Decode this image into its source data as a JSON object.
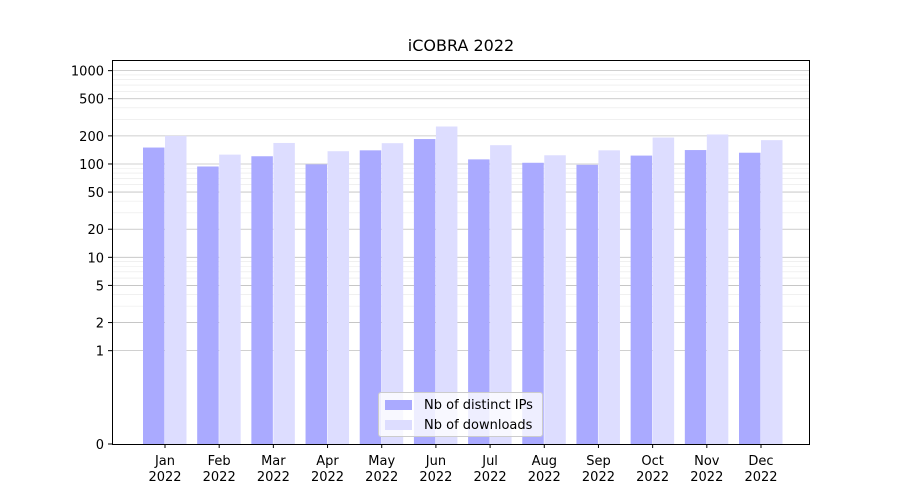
{
  "chart_data": {
    "type": "bar",
    "title": "iCOBRA 2022",
    "xlabel": "",
    "ylabel": "",
    "yscale": "symlog",
    "ylim": [
      0,
      1300
    ],
    "yticks": [
      0,
      1,
      2,
      5,
      10,
      20,
      50,
      100,
      200,
      500,
      1000
    ],
    "ytick_labels": [
      "0",
      "1",
      "2",
      "5",
      "10",
      "20",
      "50",
      "100",
      "200",
      "500",
      "1000"
    ],
    "grid": true,
    "legend_position": "lower center",
    "categories": [
      "Jan\n2022",
      "Feb\n2022",
      "Mar\n2022",
      "Apr\n2022",
      "May\n2022",
      "Jun\n2022",
      "Jul\n2022",
      "Aug\n2022",
      "Sep\n2022",
      "Oct\n2022",
      "Nov\n2022",
      "Dec\n2022"
    ],
    "series": [
      {
        "name": "Nb of distinct IPs",
        "color": "#aaaaff",
        "values": [
          150,
          94,
          121,
          99,
          140,
          185,
          112,
          103,
          98,
          123,
          141,
          132
        ]
      },
      {
        "name": "Nb of downloads",
        "color": "#ddddff",
        "values": [
          200,
          126,
          168,
          137,
          167,
          252,
          159,
          124,
          140,
          192,
          207,
          180
        ]
      }
    ]
  }
}
